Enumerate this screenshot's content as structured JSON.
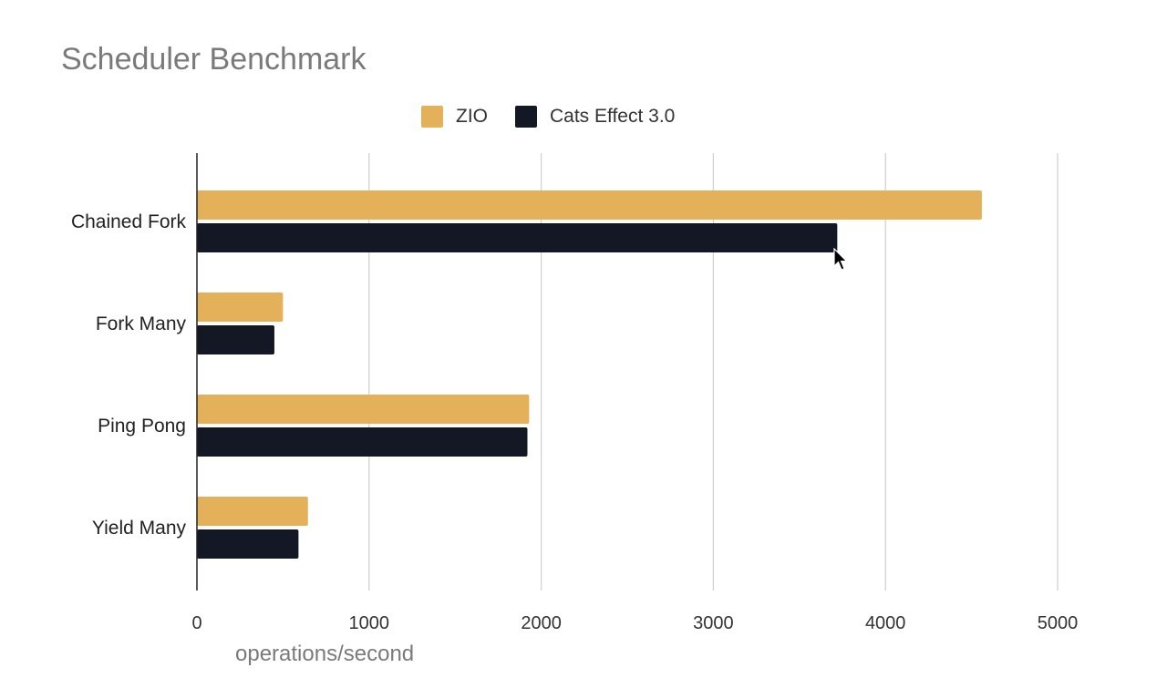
{
  "chart_data": {
    "type": "bar",
    "orientation": "horizontal",
    "title": "Scheduler Benchmark",
    "xlabel": "operations/second",
    "ylabel": "",
    "categories": [
      "Chained Fork",
      "Fork Many",
      "Ping Pong",
      "Yield Many"
    ],
    "series": [
      {
        "name": "ZIO",
        "color": "#E5B05A",
        "values": [
          4560,
          500,
          1930,
          645
        ]
      },
      {
        "name": "Cats Effect 3.0",
        "color": "#141824",
        "values": [
          3720,
          450,
          1920,
          590
        ]
      }
    ],
    "xlim": [
      0,
      5000
    ],
    "xticks": [
      "0",
      "1000",
      "2000",
      "3000",
      "4000",
      "5000"
    ],
    "grid": true,
    "legend_position": "top"
  }
}
